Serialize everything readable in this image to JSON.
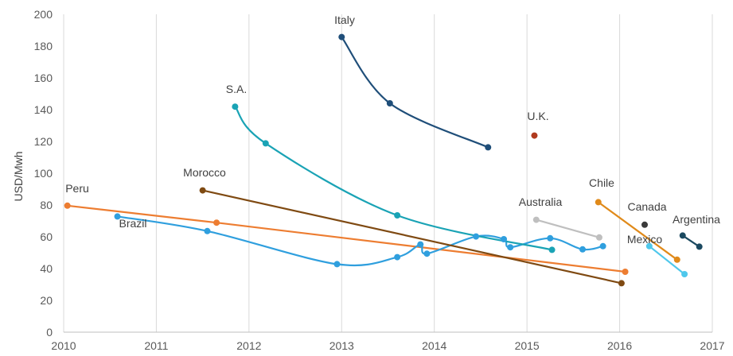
{
  "chart_data": {
    "type": "line",
    "title": "",
    "xlabel": "",
    "ylabel": "USD/Mwh",
    "xlim": [
      2010,
      2017
    ],
    "ylim": [
      0,
      200
    ],
    "yticks": [
      0,
      20,
      40,
      60,
      80,
      100,
      120,
      140,
      160,
      180,
      200
    ],
    "xticks": [
      2010,
      2011,
      2012,
      2013,
      2014,
      2015,
      2016,
      2017
    ],
    "grid": "vertical",
    "legend": "none",
    "series": [
      {
        "name": "Peru",
        "color": "#ED7D31",
        "smooth": false,
        "x": [
          2010.04,
          2011.65,
          2016.06
        ],
        "y": [
          79.6,
          68.9,
          38.0
        ]
      },
      {
        "name": "Brazil",
        "color": "#2F9FDE",
        "smooth": true,
        "x": [
          2010.58,
          2011.55,
          2012.95,
          2013.6,
          2013.85,
          2013.92,
          2014.45,
          2014.75,
          2014.82,
          2015.25,
          2015.6,
          2015.82
        ],
        "y": [
          72.8,
          63.6,
          42.8,
          47.2,
          55.2,
          49.4,
          60.2,
          58.5,
          53.4,
          59.1,
          52.1,
          54.1
        ]
      },
      {
        "name": "S.A.",
        "color": "#1AA3B5",
        "smooth": true,
        "x": [
          2011.85,
          2012.18,
          2013.6,
          2015.27
        ],
        "y": [
          141.9,
          118.8,
          73.5,
          51.8
        ]
      },
      {
        "name": "Morocco",
        "color": "#7F4A12",
        "smooth": false,
        "x": [
          2011.5,
          2016.02
        ],
        "y": [
          89.2,
          30.8
        ]
      },
      {
        "name": "Italy",
        "color": "#1F4E79",
        "smooth": true,
        "x": [
          2013.0,
          2013.52,
          2014.58
        ],
        "y": [
          185.7,
          144.0,
          116.3
        ]
      },
      {
        "name": "U.K.",
        "color": "#B03A1E",
        "smooth": false,
        "x": [
          2015.08
        ],
        "y": [
          123.7
        ]
      },
      {
        "name": "Australia",
        "color": "#BFBFBF",
        "smooth": false,
        "x": [
          2015.1,
          2015.78
        ],
        "y": [
          70.7,
          59.6
        ]
      },
      {
        "name": "Chile",
        "color": "#E08A1A",
        "smooth": false,
        "x": [
          2015.77,
          2016.62
        ],
        "y": [
          81.8,
          45.6
        ]
      },
      {
        "name": "Canada",
        "color": "#3A3A3A",
        "smooth": false,
        "x": [
          2016.27
        ],
        "y": [
          67.6
        ]
      },
      {
        "name": "Mexico",
        "color": "#4FC8EC",
        "smooth": false,
        "x": [
          2016.32,
          2016.7
        ],
        "y": [
          54.1,
          36.5
        ]
      },
      {
        "name": "Argentina",
        "color": "#1B4960",
        "smooth": false,
        "x": [
          2016.68,
          2016.86
        ],
        "y": [
          60.8,
          53.8
        ]
      }
    ],
    "annotations": [
      {
        "text": "Italy",
        "series": "Italy"
      },
      {
        "text": "S.A.",
        "series": "S.A."
      },
      {
        "text": "U.K.",
        "series": "U.K."
      },
      {
        "text": "Morocco",
        "series": "Morocco"
      },
      {
        "text": "Peru",
        "series": "Peru"
      },
      {
        "text": "Brazil",
        "series": "Brazil"
      },
      {
        "text": "Australia",
        "series": "Australia"
      },
      {
        "text": "Chile",
        "series": "Chile"
      },
      {
        "text": "Canada",
        "series": "Canada"
      },
      {
        "text": "Mexico",
        "series": "Mexico"
      },
      {
        "text": "Argentina",
        "series": "Argentina"
      }
    ]
  }
}
